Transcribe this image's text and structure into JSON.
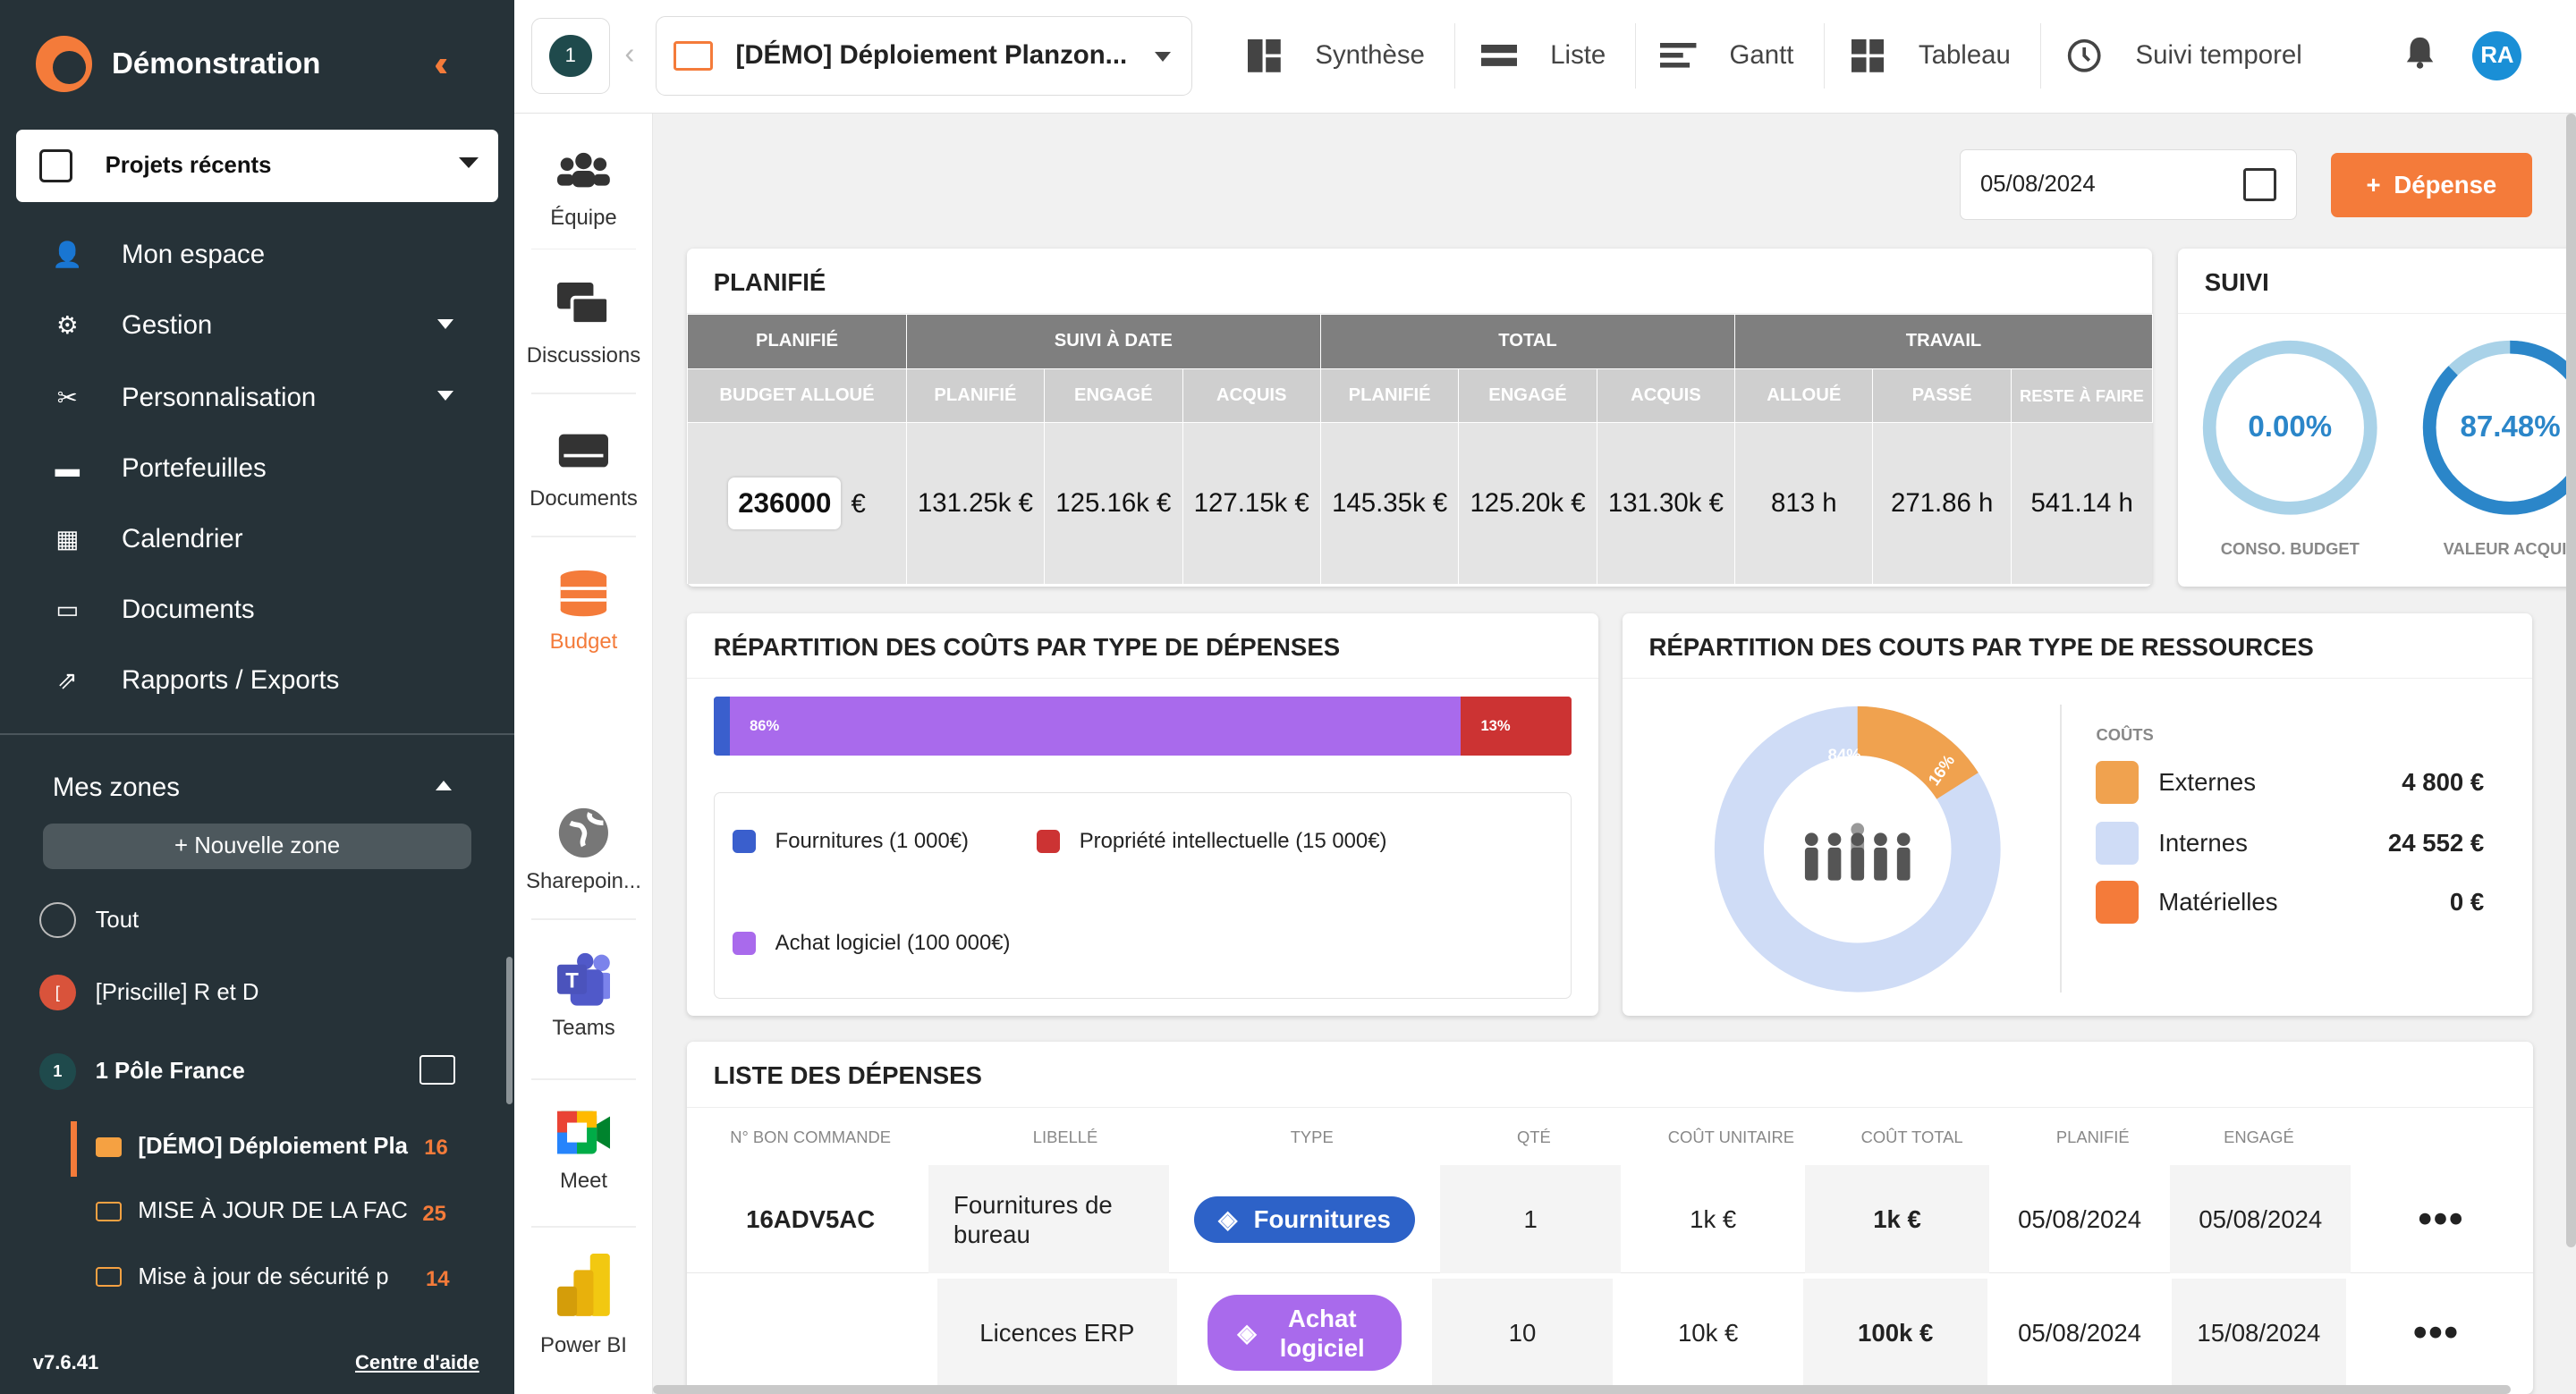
{
  "sidebar": {
    "app_name": "Démonstration",
    "recent_projects": "Projets récents",
    "nav": [
      "Mon espace",
      "Gestion",
      "Personnalisation",
      "Portefeuilles",
      "Calendrier",
      "Documents",
      "Rapports / Exports"
    ],
    "zones_title": "Mes zones",
    "new_zone": "+ Nouvelle zone",
    "zones": [
      {
        "label": "Tout"
      },
      {
        "label": "[Priscille] R et D",
        "badge": "["
      },
      {
        "label": "1 Pôle France",
        "badge": "1"
      }
    ],
    "projects": [
      {
        "label": "[DÉMO] Déploiement Pla",
        "count": "16"
      },
      {
        "label": "MISE À JOUR DE LA FAC",
        "count": "25"
      },
      {
        "label": "Mise à jour de sécurité p",
        "count": "14"
      }
    ],
    "version": "v7.6.41",
    "help": "Centre d'aide"
  },
  "topbar": {
    "zone_badge": "1",
    "project": "[DÉMO] Déploiement Planzon...",
    "views": [
      "Synthèse",
      "Liste",
      "Gantt",
      "Tableau",
      "Suivi temporel"
    ],
    "avatar": "RA"
  },
  "tools": [
    "Équipe",
    "Discussions",
    "Documents",
    "Budget",
    "Sharepoin...",
    "Teams",
    "Meet",
    "Power BI"
  ],
  "date": "05/08/2024",
  "add_expense": "Dépense",
  "planifie": {
    "title": "PLANIFIÉ",
    "groups": [
      "PLANIFIÉ",
      "SUIVI À DATE",
      "TOTAL",
      "TRAVAIL"
    ],
    "columns": [
      "BUDGET ALLOUÉ",
      "PLANIFIÉ",
      "ENGAGÉ",
      "ACQUIS",
      "PLANIFIÉ",
      "ENGAGÉ",
      "ACQUIS",
      "ALLOUÉ",
      "PASSÉ",
      "RESTE À FAIRE"
    ],
    "budget_allocated": "236000",
    "currency": "€",
    "values": [
      "131.25k €",
      "125.16k €",
      "127.15k €",
      "145.35k €",
      "125.20k €",
      "131.30k €",
      "813 h",
      "271.86 h",
      "541.14 h"
    ]
  },
  "suivi": {
    "title": "SUIVI",
    "gauges": [
      {
        "value": "0.00%",
        "label": "CONSO. BUDGET",
        "fraction": 0.0
      },
      {
        "value": "87.48%",
        "label": "VALEUR ACQUIS",
        "fraction": 0.8748
      }
    ]
  },
  "repartition_depenses": {
    "title": "RÉPARTITION DES COÛTS PAR TYPE DE DÉPENSES",
    "segments": [
      {
        "label": "1%",
        "fraction": 0.01,
        "color": "#3a5fcd"
      },
      {
        "label": "86%",
        "fraction": 0.86,
        "color": "#a96aec"
      },
      {
        "label": "13%",
        "fraction": 0.13,
        "color": "#cc3333"
      }
    ],
    "legend": [
      "Fournitures (1 000€)",
      "Propriété intellectuelle (15 000€)",
      "Achat logiciel (100 000€)"
    ]
  },
  "repartition_ressources": {
    "title": "RÉPARTITION DES COUTS PAR TYPE DE RESSOURCES",
    "costs_header": "COÛTS",
    "donut_labels": [
      "84%",
      "16%"
    ],
    "items": [
      {
        "label": "Externes",
        "value": "4 800 €",
        "color": "#f0a24f"
      },
      {
        "label": "Internes",
        "value": "24 552 €",
        "color": "#cfdcf6"
      },
      {
        "label": "Matérielles",
        "value": "0 €",
        "color": "#f47b3a"
      }
    ]
  },
  "liste_depenses": {
    "title": "LISTE DES DÉPENSES",
    "headers": [
      "N° BON COMMANDE",
      "LIBELLÉ",
      "TYPE",
      "QTÉ",
      "COÛT UNITAIRE",
      "COÛT TOTAL",
      "PLANIFIÉ",
      "ENGAGÉ"
    ],
    "rows": [
      {
        "order": "16ADV5AC",
        "label": "Fournitures de bureau",
        "type": "Fournitures",
        "qty": "1",
        "unit": "1k €",
        "total": "1k €",
        "planned": "05/08/2024",
        "committed": "05/08/2024"
      },
      {
        "order": "",
        "label": "Licences ERP",
        "type": "Achat logiciel",
        "qty": "10",
        "unit": "10k €",
        "total": "100k €",
        "planned": "05/08/2024",
        "committed": "15/08/2024"
      }
    ]
  }
}
